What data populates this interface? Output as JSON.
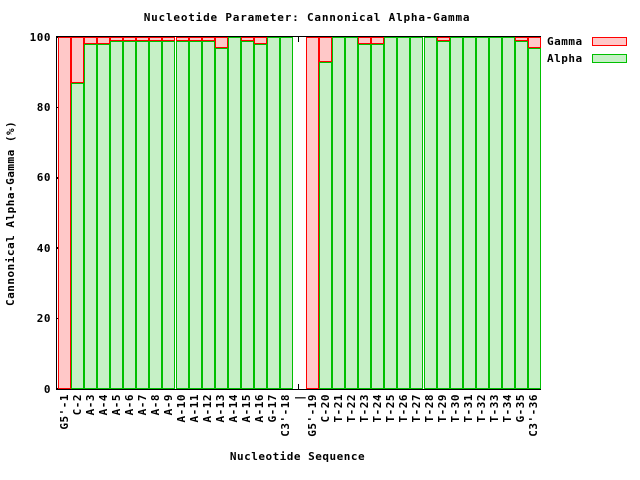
{
  "window": {
    "background": "#ffffff",
    "text_color": "#000000",
    "border_color": "#000000"
  },
  "chart_data": {
    "type": "bar",
    "stacked": true,
    "title": "Nucleotide Parameter: Cannonical Alpha-Gamma",
    "xlabel": "Nucleotide Sequence",
    "ylabel": "Cannonical Alpha-Gamma (%)",
    "ylim": [
      0,
      100
    ],
    "yticks": [
      0,
      20,
      40,
      60,
      80,
      100
    ],
    "grid": false,
    "legend_position": "top-right-outside",
    "separator_index": 18,
    "categories": [
      "G5'-1",
      "C-2",
      "A-3",
      "A-4",
      "A-5",
      "A-6",
      "A-7",
      "A-8",
      "A-9",
      "A-10",
      "A-11",
      "A-12",
      "A-13",
      "A-14",
      "A-15",
      "A-16",
      "G-17",
      "C3'-18",
      "|",
      "G5'-19",
      "C-20",
      "T-21",
      "T-22",
      "T-23",
      "T-24",
      "T-25",
      "T-26",
      "T-27",
      "T-28",
      "T-29",
      "T-30",
      "T-31",
      "T-32",
      "T-33",
      "T-34",
      "G-35",
      "C3'-36"
    ],
    "series": [
      {
        "name": "Alpha",
        "fill": "#c6f0c6",
        "border": "#00c000",
        "values": [
          0,
          87,
          98,
          98,
          99,
          99,
          99,
          99,
          99,
          99,
          99,
          99,
          97,
          100,
          99,
          98,
          100,
          100,
          null,
          0,
          93,
          100,
          100,
          98,
          98,
          100,
          100,
          100,
          100,
          99,
          100,
          100,
          100,
          100,
          100,
          99,
          97
        ]
      },
      {
        "name": "Gamma",
        "fill": "#ffc8c8",
        "border": "#ff0000",
        "values": [
          100,
          13,
          2,
          2,
          1,
          1,
          1,
          1,
          1,
          1,
          1,
          1,
          3,
          0,
          1,
          2,
          0,
          0,
          null,
          100,
          7,
          0,
          0,
          2,
          2,
          0,
          0,
          0,
          0,
          1,
          0,
          0,
          0,
          0,
          0,
          1,
          3
        ]
      }
    ]
  },
  "legend": [
    {
      "label": "Gamma",
      "fill": "#ffc8c8",
      "border": "#ff0000"
    },
    {
      "label": "Alpha",
      "fill": "#c6f0c6",
      "border": "#00c000"
    }
  ]
}
